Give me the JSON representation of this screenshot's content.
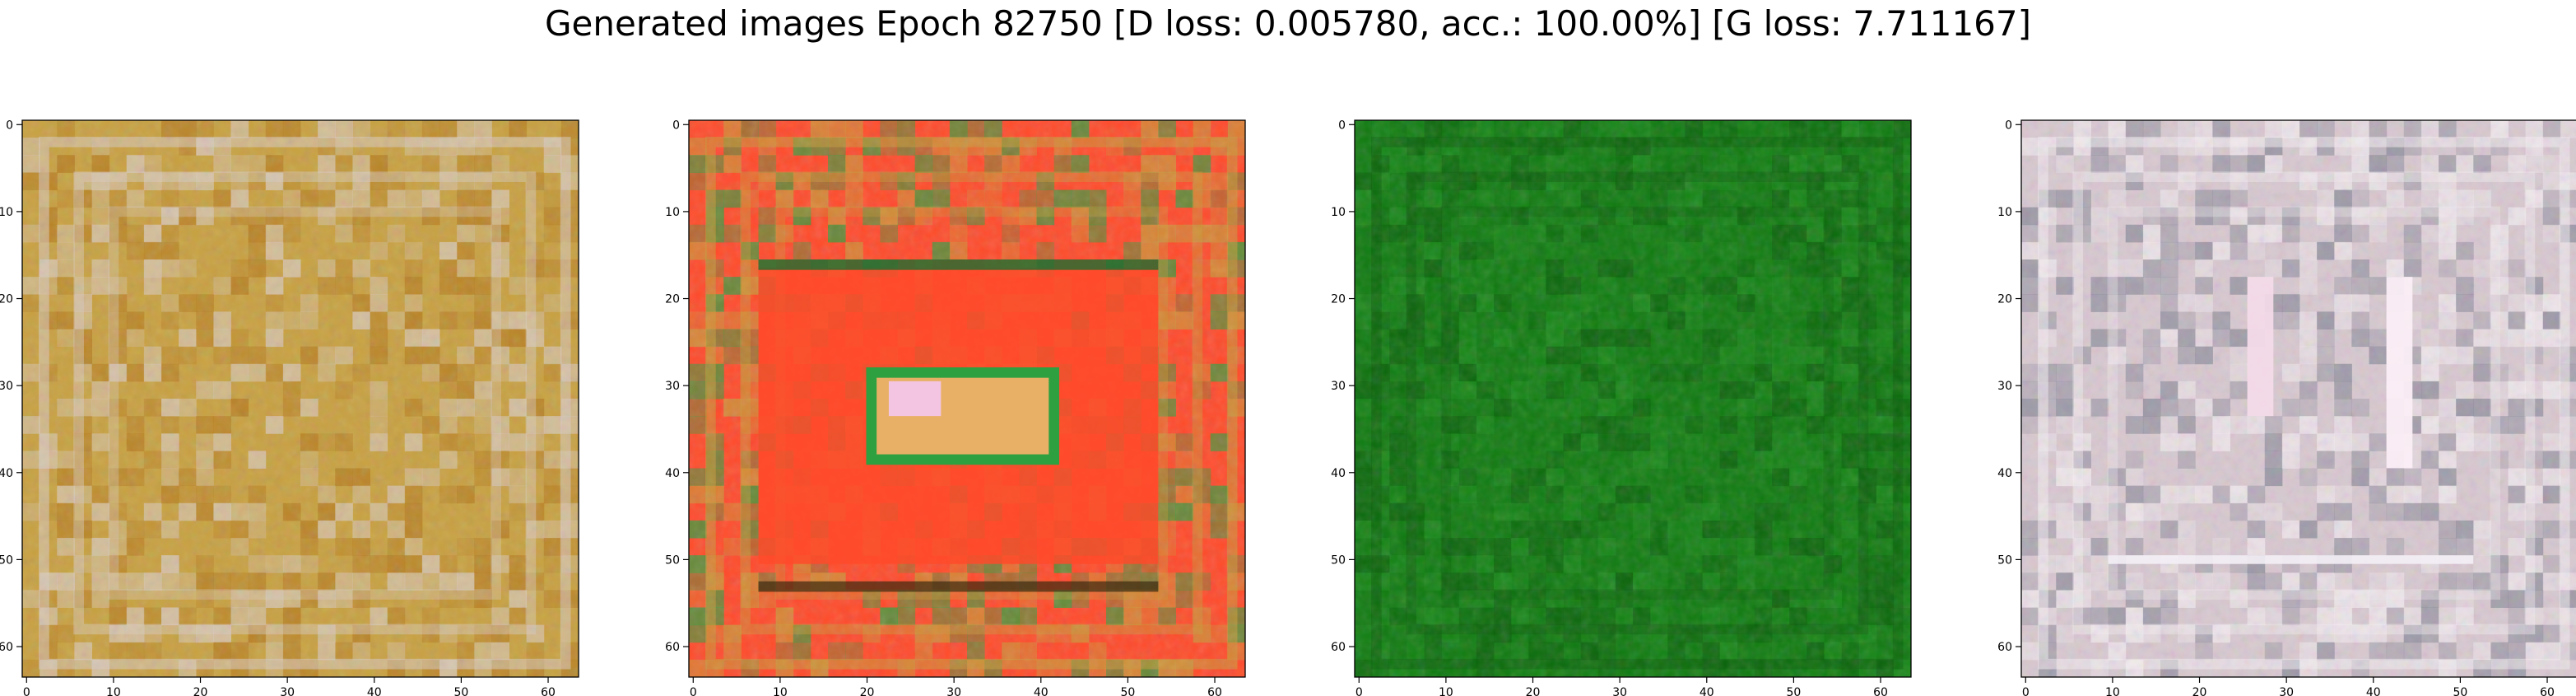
{
  "title": "Generated images Epoch 82750 [D loss: 0.005780, acc.: 100.00%] [G loss: 7.711167]",
  "chart_data": [
    {
      "type": "heatmap",
      "image": "generated-sample-1",
      "dominant_colors": [
        "#c8a040",
        "#d9cbc2",
        "#b57a1e"
      ],
      "xticks": [
        "0",
        "10",
        "20",
        "30",
        "40",
        "50",
        "60"
      ],
      "yticks": [
        "0",
        "10",
        "20",
        "30",
        "40",
        "50",
        "60"
      ],
      "xlim": [
        -0.5,
        63.5
      ],
      "ylim": [
        63.5,
        -0.5
      ]
    },
    {
      "type": "heatmap",
      "image": "generated-sample-2",
      "dominant_colors": [
        "#ff4a2a",
        "#c99a3a",
        "#2ea040"
      ],
      "xticks": [
        "0",
        "10",
        "20",
        "30",
        "40",
        "50",
        "60"
      ],
      "yticks": [
        "0",
        "10",
        "20",
        "30",
        "40",
        "50",
        "60"
      ],
      "xlim": [
        -0.5,
        63.5
      ],
      "ylim": [
        63.5,
        -0.5
      ]
    },
    {
      "type": "heatmap",
      "image": "generated-sample-3",
      "dominant_colors": [
        "#0f7a0f",
        "#0a5e0a",
        "#1a8a1a"
      ],
      "xticks": [
        "0",
        "10",
        "20",
        "30",
        "40",
        "50",
        "60"
      ],
      "yticks": [
        "0",
        "10",
        "20",
        "30",
        "40",
        "50",
        "60"
      ],
      "xlim": [
        -0.5,
        63.5
      ],
      "ylim": [
        63.5,
        -0.5
      ]
    },
    {
      "type": "heatmap",
      "image": "generated-sample-4",
      "dominant_colors": [
        "#d8c8d0",
        "#f4eef2",
        "#8a8a9a"
      ],
      "xticks": [
        "0",
        "10",
        "20",
        "30",
        "40",
        "50",
        "60"
      ],
      "yticks": [
        "0",
        "10",
        "20",
        "30",
        "40",
        "50",
        "60"
      ],
      "xlim": [
        -0.5,
        63.5
      ],
      "ylim": [
        63.5,
        -0.5
      ]
    }
  ]
}
